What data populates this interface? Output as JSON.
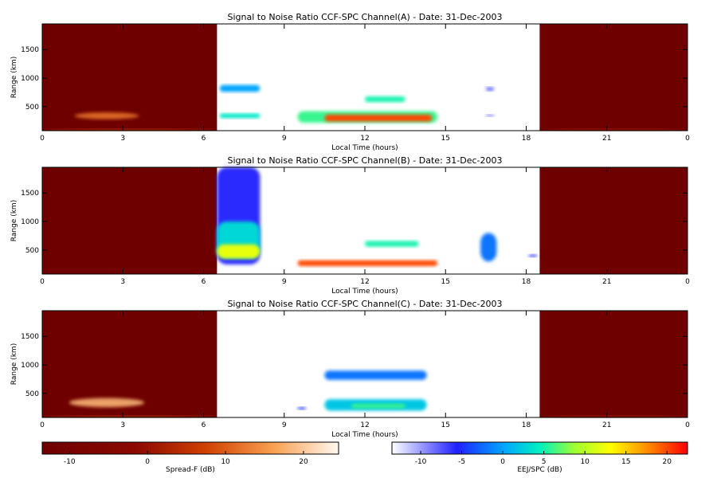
{
  "figure": {
    "colorbars": [
      {
        "label": "Spread-F (dB)",
        "ticks": [
          "-10",
          "0",
          "10",
          "20"
        ],
        "range": [
          -13.5,
          24.5
        ],
        "scheme": "heat"
      },
      {
        "label": "EEJ/SPC (dB)",
        "ticks": [
          "-10",
          "-5",
          "0",
          "5",
          "10",
          "15",
          "20"
        ],
        "range": [
          -13.5,
          22.5
        ],
        "scheme": "rainbow"
      }
    ]
  },
  "chart_data": [
    {
      "type": "heatmap",
      "title": "Signal to Noise Ratio CCF-SPC Channel(A) - Date: 31-Dec-2003",
      "xlabel": "Local Time (hours)",
      "ylabel": "Range (km)",
      "xlim": [
        0,
        24
      ],
      "ylim": [
        80,
        1950
      ],
      "xticks": [
        "0",
        "3",
        "6",
        "9",
        "12",
        "15",
        "18",
        "21",
        "0"
      ],
      "yticks": [
        500,
        1000,
        1500
      ],
      "night_mode": "Spread-F",
      "day_mode": "EEJ/SPC",
      "night_intervals": [
        [
          0,
          6.5
        ],
        [
          18.5,
          24
        ]
      ],
      "night_features": [
        {
          "x": [
            1.2,
            3.6
          ],
          "y": [
            280,
            400
          ],
          "snr_db": 12,
          "label": "spread-F echo"
        },
        {
          "x": [
            0,
            6.5
          ],
          "y": [
            80,
            110
          ],
          "snr_db": 8
        },
        {
          "x": [
            18.5,
            24
          ],
          "y": [
            80,
            110
          ],
          "snr_db": 5
        }
      ],
      "day_features": [
        {
          "x": [
            6.6,
            8.1
          ],
          "y": [
            760,
            880
          ],
          "snr_db": 0
        },
        {
          "x": [
            6.6,
            8.1
          ],
          "y": [
            300,
            380
          ],
          "snr_db": 4
        },
        {
          "x": [
            9.5,
            14.7
          ],
          "y": [
            220,
            420
          ],
          "snr_db": 6
        },
        {
          "x": [
            10.5,
            14.5
          ],
          "y": [
            240,
            360
          ],
          "snr_db": 20
        },
        {
          "x": [
            12,
            13.5
          ],
          "y": [
            580,
            680
          ],
          "snr_db": 5
        },
        {
          "x": [
            16.5,
            16.8
          ],
          "y": [
            780,
            840
          ],
          "snr_db": -8
        },
        {
          "x": [
            16.5,
            16.8
          ],
          "y": [
            330,
            360
          ],
          "snr_db": -8
        }
      ]
    },
    {
      "type": "heatmap",
      "title": "Signal to Noise Ratio CCF-SPC Channel(B) - Date: 31-Dec-2003",
      "xlabel": "Local Time (hours)",
      "ylabel": "Range (km)",
      "xlim": [
        0,
        24
      ],
      "ylim": [
        80,
        1950
      ],
      "xticks": [
        "0",
        "3",
        "6",
        "9",
        "12",
        "15",
        "18",
        "21",
        "0"
      ],
      "yticks": [
        500,
        1000,
        1500
      ],
      "night_mode": "Spread-F",
      "day_mode": "EEJ/SPC",
      "night_intervals": [
        [
          0,
          6.5
        ],
        [
          18.5,
          24
        ]
      ],
      "night_features": [],
      "day_features": [
        {
          "x": [
            6.5,
            8.1
          ],
          "y": [
            250,
            1950
          ],
          "snr_db": -6
        },
        {
          "x": [
            6.5,
            8.1
          ],
          "y": [
            350,
            1000
          ],
          "snr_db": 3
        },
        {
          "x": [
            6.5,
            8.1
          ],
          "y": [
            350,
            600
          ],
          "snr_db": 12
        },
        {
          "x": [
            9.5,
            14.7
          ],
          "y": [
            220,
            320
          ],
          "snr_db": 20
        },
        {
          "x": [
            12,
            14
          ],
          "y": [
            560,
            660
          ],
          "snr_db": 5
        },
        {
          "x": [
            16.3,
            16.9
          ],
          "y": [
            300,
            800
          ],
          "snr_db": -2
        },
        {
          "x": [
            18.1,
            18.4
          ],
          "y": [
            380,
            420
          ],
          "snr_db": -6
        }
      ]
    },
    {
      "type": "heatmap",
      "title": "Signal to Noise Ratio CCF-SPC Channel(C) - Date: 31-Dec-2003",
      "xlabel": "Local Time (hours)",
      "ylabel": "Range (km)",
      "xlim": [
        0,
        24
      ],
      "ylim": [
        80,
        1950
      ],
      "xticks": [
        "0",
        "3",
        "6",
        "9",
        "12",
        "15",
        "18",
        "21",
        "0"
      ],
      "yticks": [
        500,
        1000,
        1500
      ],
      "night_mode": "Spread-F",
      "day_mode": "EEJ/SPC",
      "night_intervals": [
        [
          0,
          6.5
        ],
        [
          18.5,
          24
        ]
      ],
      "night_features": [
        {
          "x": [
            1.0,
            3.8
          ],
          "y": [
            260,
            420
          ],
          "snr_db": 18,
          "label": "spread-F echo"
        },
        {
          "x": [
            0,
            6.5
          ],
          "y": [
            80,
            110
          ],
          "snr_db": 8
        },
        {
          "x": [
            18.5,
            24
          ],
          "y": [
            80,
            110
          ],
          "snr_db": 5
        }
      ],
      "day_features": [
        {
          "x": [
            10.5,
            14.3
          ],
          "y": [
            740,
            900
          ],
          "snr_db": -2
        },
        {
          "x": [
            10.5,
            14.3
          ],
          "y": [
            200,
            400
          ],
          "snr_db": 2
        },
        {
          "x": [
            11.5,
            13.5
          ],
          "y": [
            240,
            320
          ],
          "snr_db": 6
        },
        {
          "x": [
            9.5,
            9.8
          ],
          "y": [
            220,
            260
          ],
          "snr_db": -5
        }
      ]
    }
  ]
}
